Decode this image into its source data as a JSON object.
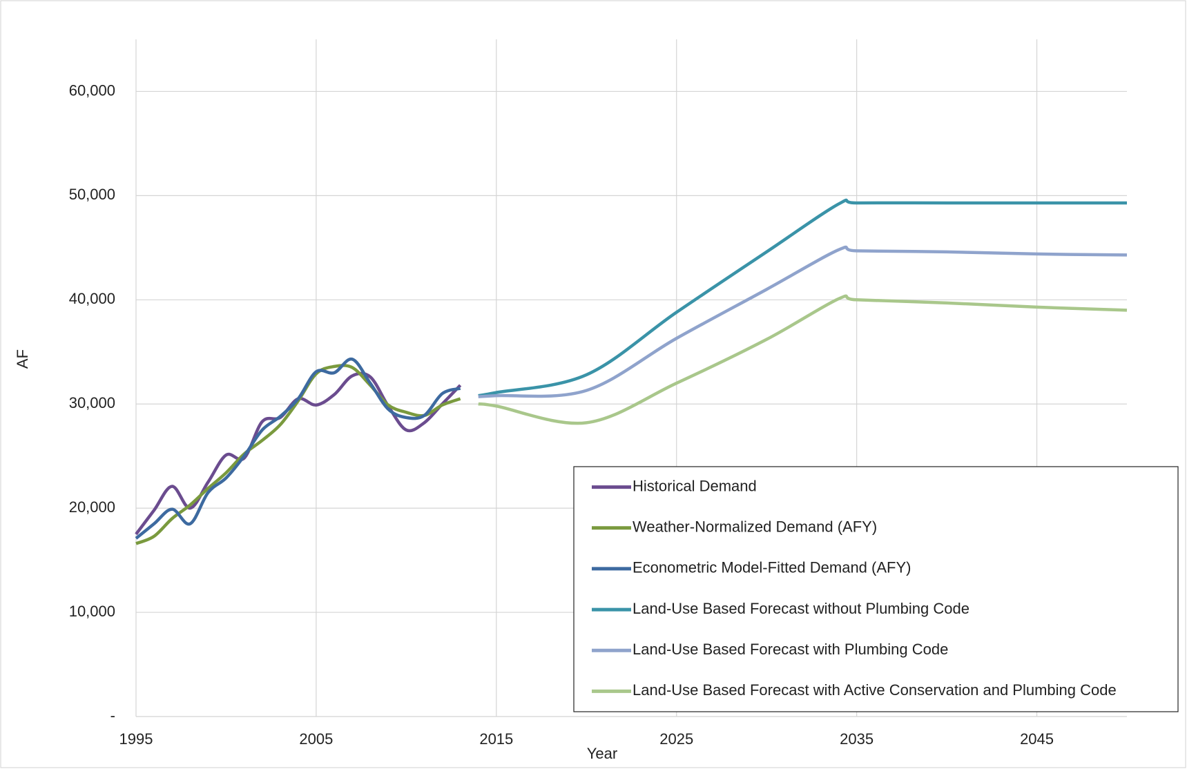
{
  "chart_data": {
    "type": "line",
    "x_label": "Year",
    "y_label": "AF",
    "xlim": [
      1995,
      2050
    ],
    "ylim": [
      0,
      65000
    ],
    "xticks": [
      1995,
      2005,
      2015,
      2025,
      2035,
      2045
    ],
    "yticks": [
      {
        "value": 0,
        "label": "-"
      },
      {
        "value": 10000,
        "label": "10,000"
      },
      {
        "value": 20000,
        "label": "20,000"
      },
      {
        "value": 30000,
        "label": "30,000"
      },
      {
        "value": 40000,
        "label": "40,000"
      },
      {
        "value": 50000,
        "label": "50,000"
      },
      {
        "value": 60000,
        "label": "60,000"
      }
    ],
    "grid": true,
    "legend": "lower right",
    "series": [
      {
        "name": "Historical Demand",
        "color": "#6b4c8f",
        "x": [
          1995,
          1996,
          1997,
          1998,
          1999,
          2000,
          2001,
          2002,
          2003,
          2004,
          2005,
          2006,
          2007,
          2008,
          2009,
          2010,
          2011,
          2012,
          2013
        ],
        "values": [
          17500,
          19800,
          22100,
          20000,
          22500,
          25100,
          24800,
          28300,
          28700,
          30500,
          29900,
          30900,
          32700,
          32600,
          29800,
          27500,
          28200,
          30000,
          31800
        ]
      },
      {
        "name": "Weather-Normalized Demand (AFY)",
        "color": "#7a9a3e",
        "x": [
          1995,
          1996,
          1997,
          1998,
          1999,
          2000,
          2001,
          2002,
          2003,
          2004,
          2005,
          2006,
          2007,
          2008,
          2009,
          2010,
          2011,
          2012,
          2013
        ],
        "values": [
          16600,
          17300,
          19000,
          20300,
          21900,
          23400,
          25200,
          26500,
          28000,
          30300,
          32900,
          33600,
          33500,
          31800,
          29900,
          29200,
          28900,
          29900,
          30500
        ]
      },
      {
        "name": "Econometric Model-Fitted Demand (AFY)",
        "color": "#3d6aa0",
        "x": [
          1995,
          1996,
          1997,
          1998,
          1999,
          2000,
          2001,
          2002,
          2003,
          2004,
          2005,
          2006,
          2007,
          2008,
          2009,
          2010,
          2011,
          2012,
          2013
        ],
        "values": [
          17100,
          18500,
          19900,
          18500,
          21500,
          22900,
          25000,
          27500,
          28800,
          30500,
          33100,
          33000,
          34300,
          32000,
          29500,
          28700,
          28900,
          31000,
          31500
        ]
      },
      {
        "name": "Land-Use Based Forecast without Plumbing Code",
        "color": "#3a93a8",
        "x": [
          2014,
          2015,
          2020,
          2025,
          2030,
          2034,
          2035,
          2040,
          2045,
          2050
        ],
        "values": [
          30800,
          31100,
          32800,
          38800,
          44600,
          49200,
          49300,
          49300,
          49300,
          49300
        ]
      },
      {
        "name": "Land-Use Based Forecast with Plumbing Code",
        "color": "#8fa3cc",
        "x": [
          2014,
          2015,
          2020,
          2025,
          2030,
          2034,
          2035,
          2040,
          2045,
          2050
        ],
        "values": [
          30700,
          30800,
          31300,
          36300,
          41000,
          44800,
          44700,
          44600,
          44400,
          44300
        ]
      },
      {
        "name": "Land-Use Based Forecast with Active Conservation and Plumbing Code",
        "color": "#a9c78b",
        "x": [
          2014,
          2015,
          2020,
          2025,
          2030,
          2034,
          2035,
          2040,
          2045,
          2050
        ],
        "values": [
          30000,
          29800,
          28200,
          32000,
          36200,
          40100,
          40000,
          39700,
          39300,
          39000
        ]
      }
    ]
  }
}
